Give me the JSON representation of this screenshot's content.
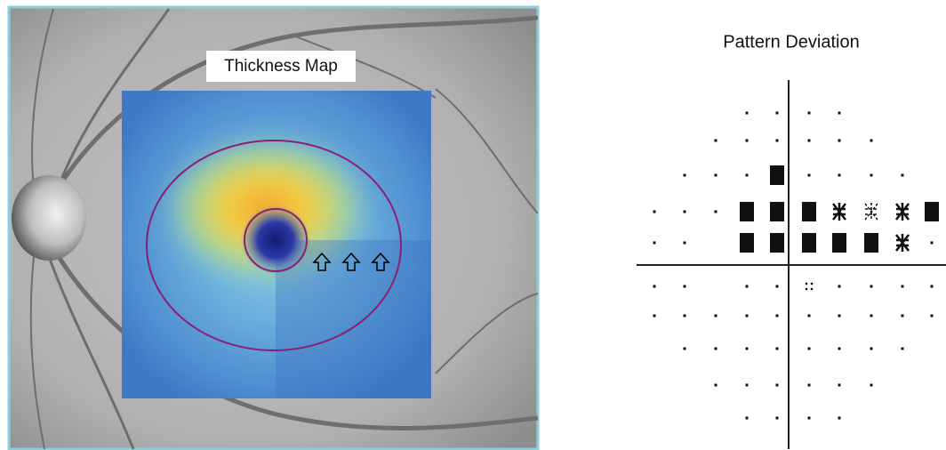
{
  "left_panel": {
    "label": "Thickness Map"
  },
  "right_panel": {
    "title": "Pattern Deviation"
  }
}
